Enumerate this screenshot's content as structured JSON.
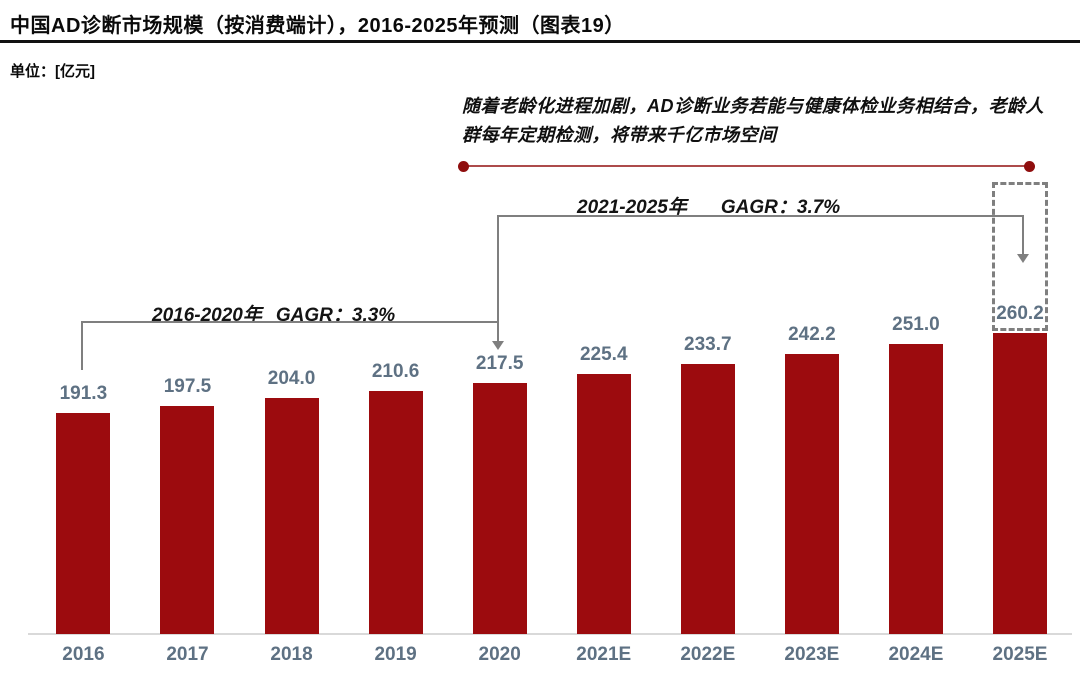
{
  "header": {
    "title": "中国AD诊断市场规模（按消费端计），2016-2025年预测（图表19）",
    "unit_label": "单位：[亿元]"
  },
  "annotation": {
    "text": "随着老龄化进程加剧，AD诊断业务若能与健康体检业务相结合，老龄人群每年定期检测，将带来千亿市场空间"
  },
  "cagr_labels": [
    {
      "period": "2016-2020年",
      "value": "GAGR：3.3%"
    },
    {
      "period": "2021-2025年",
      "value": "GAGR：3.7%"
    }
  ],
  "chart_data": {
    "type": "bar",
    "title": "中国AD诊断市场规模（按消费端计），2016-2025年预测（图表19）",
    "unit": "亿元",
    "categories": [
      "2016",
      "2017",
      "2018",
      "2019",
      "2020",
      "2021E",
      "2022E",
      "2023E",
      "2024E",
      "2025E"
    ],
    "values": [
      191.3,
      197.5,
      204.0,
      210.6,
      217.5,
      225.4,
      233.7,
      242.2,
      251.0,
      260.2
    ],
    "value_labels": [
      "191.3",
      "197.5",
      "204.0",
      "210.6",
      "217.5",
      "225.4",
      "233.7",
      "242.2",
      "251.0",
      "260.2"
    ],
    "ylim": [
      0,
      280
    ],
    "grid": false,
    "legend": "none",
    "highlighted_category": "2025E",
    "annotations": [
      "2016-2020年 GAGR：3.3%",
      "2021-2025年 GAGR：3.7%",
      "随着老龄化进程加剧，AD诊断业务若能与健康体检业务相结合，老龄人群每年定期检测，将带来千亿市场空间"
    ]
  },
  "colors": {
    "bar": "#9C0B0E",
    "value_label": "#5E7183",
    "axis_line": "#D9D9D9",
    "bracket_gray": "#7F7F7F",
    "annotation_line": "#AD4B4B",
    "annotation_dot": "#8F0E0E",
    "title_text": "#0A0A0A"
  }
}
